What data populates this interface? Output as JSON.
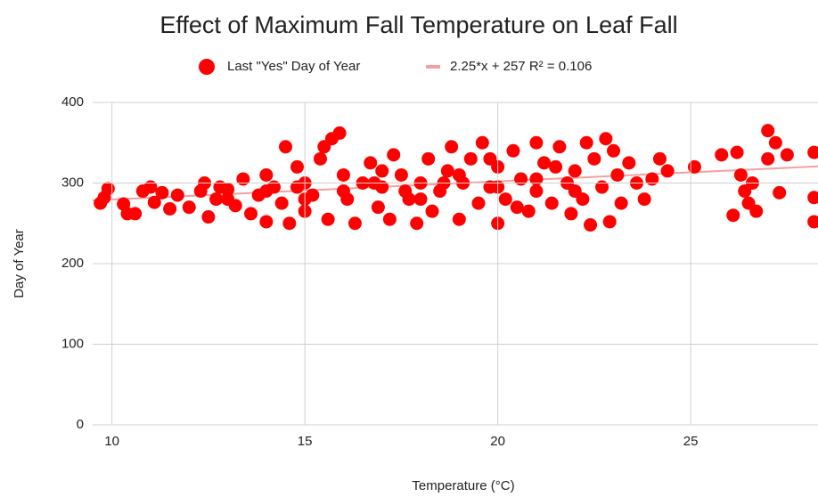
{
  "chart_data": {
    "type": "scatter",
    "title": "Effect of Maximum Fall Temperature on Leaf Fall",
    "xlabel": "Temperature (°C)",
    "ylabel": "Day of Year",
    "x": [
      9.7,
      9.8,
      9.9,
      10.3,
      10.4,
      10.6,
      10.8,
      11,
      11.1,
      11.3,
      11.5,
      11.7,
      12,
      12.3,
      12.4,
      12.5,
      12.7,
      13,
      13.2,
      13.4,
      13.6,
      13.8,
      14,
      14,
      14.2,
      14.4,
      14.5,
      14.6,
      14.8,
      15,
      15,
      15.2,
      15.4,
      15.5,
      15.6,
      15.7,
      15.9,
      16,
      16.1,
      16.3,
      16.5,
      16.7,
      16.9,
      17,
      17.2,
      17.3,
      17.5,
      17.7,
      17.9,
      18,
      18.2,
      18.3,
      18.5,
      18.7,
      18.8,
      19,
      19.1,
      19.3,
      19.5,
      19.6,
      19.8,
      20,
      20,
      20.2,
      20.4,
      20.6,
      20.8,
      21,
      21,
      21.2,
      21.4,
      21.6,
      21.8,
      21.9,
      22,
      22.2,
      22.3,
      22.4,
      22.5,
      22.7,
      22.8,
      22.9,
      23,
      23.1,
      23.2,
      23.4,
      23.6,
      23.8,
      24,
      24.2,
      24.4,
      25.1,
      25.8,
      26.1,
      26.2,
      26.3,
      26.4,
      26.5,
      26.6,
      26.7,
      27,
      27,
      27.2,
      27.3,
      27.5,
      28.2,
      28.2,
      28.2,
      13,
      14,
      16,
      17,
      18,
      19,
      20,
      21,
      22,
      15,
      16.8,
      18.6,
      19.8,
      20.5,
      21.5,
      12.8,
      14.8,
      17.6
    ],
    "series": [
      {
        "name": "Last \"Yes\" Day of Year",
        "color": "#ff0000",
        "values": [
          275,
          282,
          293,
          274,
          262,
          262,
          290,
          295,
          276,
          288,
          268,
          285,
          270,
          290,
          300,
          258,
          280,
          292,
          272,
          305,
          262,
          285,
          310,
          252,
          295,
          275,
          345,
          250,
          320,
          300,
          265,
          285,
          330,
          345,
          255,
          355,
          362,
          310,
          280,
          250,
          300,
          325,
          270,
          295,
          255,
          335,
          310,
          280,
          250,
          300,
          330,
          265,
          290,
          315,
          345,
          255,
          300,
          330,
          275,
          350,
          295,
          320,
          250,
          280,
          340,
          305,
          265,
          350,
          290,
          325,
          275,
          345,
          300,
          262,
          315,
          280,
          350,
          248,
          330,
          295,
          355,
          252,
          340,
          310,
          275,
          325,
          300,
          280,
          305,
          330,
          315,
          320,
          335,
          260,
          338,
          310,
          290,
          275,
          300,
          265,
          330,
          365,
          350,
          288,
          335,
          338,
          282,
          252,
          280,
          290,
          290,
          315,
          280,
          310,
          295,
          305,
          290,
          280,
          300,
          300,
          330,
          270,
          320,
          295,
          295,
          290
        ]
      },
      {
        "name": "2.25*x + 257 R² = 0.106",
        "color": "#f4a0a0",
        "x": [
          9.5,
          28.3
        ],
        "values": [
          278.4,
          320.7
        ]
      }
    ],
    "xlim": [
      9.5,
      28.3
    ],
    "xticks": [
      10,
      15,
      20,
      25
    ],
    "ylim": [
      0,
      400
    ],
    "yticks": [
      0,
      100,
      200,
      300,
      400
    ],
    "grid": true
  }
}
